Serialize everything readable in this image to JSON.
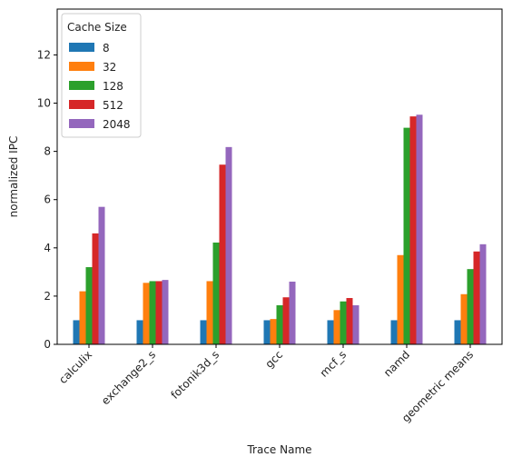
{
  "chart_data": {
    "type": "bar",
    "title": "",
    "xlabel": "Trace Name",
    "ylabel": "normalized IPC",
    "categories": [
      "calculix",
      "exchange2_s",
      "fotonik3d_s",
      "gcc",
      "mcf_s",
      "namd",
      "geometric means"
    ],
    "ylim": [
      0,
      13.9
    ],
    "yticks": [
      0,
      2,
      4,
      6,
      8,
      10,
      12
    ],
    "grid": false,
    "legend": {
      "title": "Cache Size",
      "placement": "top-left"
    },
    "series": [
      {
        "name": "8",
        "color": "#1f77b4",
        "values": [
          1.0,
          1.0,
          1.0,
          1.0,
          1.0,
          1.0,
          1.0
        ]
      },
      {
        "name": "32",
        "color": "#ff7f0e",
        "values": [
          2.2,
          2.55,
          2.62,
          1.05,
          1.42,
          3.7,
          2.08
        ]
      },
      {
        "name": "128",
        "color": "#2ca02c",
        "values": [
          3.2,
          2.62,
          4.22,
          1.62,
          1.78,
          8.98,
          3.12
        ]
      },
      {
        "name": "512",
        "color": "#d62728",
        "values": [
          4.6,
          2.62,
          7.45,
          1.95,
          1.92,
          9.45,
          3.85
        ]
      },
      {
        "name": "2048",
        "color": "#9467bd",
        "values": [
          5.7,
          2.67,
          8.18,
          2.6,
          1.62,
          9.52,
          4.15
        ]
      }
    ]
  }
}
